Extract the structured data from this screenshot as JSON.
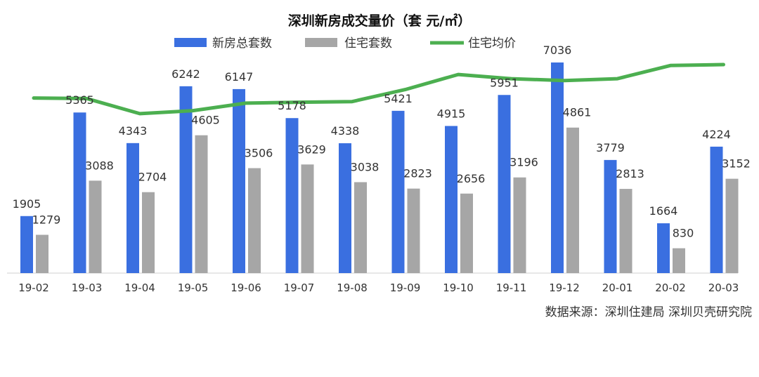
{
  "chart_data": {
    "type": "bar",
    "title": "深圳新房成交量价（套 元/㎡）",
    "categories": [
      "19-02",
      "19-03",
      "19-04",
      "19-05",
      "19-06",
      "19-07",
      "19-08",
      "19-09",
      "19-10",
      "19-11",
      "19-12",
      "20-01",
      "20-02",
      "20-03"
    ],
    "series": [
      {
        "name": "新房总套数",
        "type": "bar",
        "color": "#3a6fe0",
        "values": [
          1905,
          5365,
          4343,
          6242,
          6147,
          5178,
          4338,
          5421,
          4915,
          5951,
          7036,
          3779,
          1664,
          4224
        ],
        "labels": [
          "1905",
          "5365",
          "4343",
          "6242",
          "6147",
          "5178",
          "4338",
          "5421",
          "4915",
          "5951",
          "7036",
          "3779",
          "1664",
          "4224"
        ]
      },
      {
        "name": "住宅套数",
        "type": "bar",
        "color": "#a6a6a6",
        "values": [
          1279,
          3088,
          2704,
          4605,
          3506,
          3629,
          3038,
          2823,
          2656,
          3196,
          4861,
          2813,
          830,
          3152
        ],
        "labels": [
          "1279",
          "3088",
          "2704",
          "4605",
          "3506",
          "3629",
          "3038",
          "2823",
          "2656",
          "3196",
          "4861",
          "2813",
          "830",
          "3152"
        ]
      },
      {
        "name": "住宅均价",
        "type": "line",
        "color": "#4caf50",
        "values": [
          58200,
          58000,
          53000,
          54000,
          56500,
          56800,
          57000,
          61000,
          66000,
          64600,
          64000,
          64600,
          69000,
          69300
        ]
      }
    ],
    "legend_position": "top",
    "grid": false,
    "ylim_bars": [
      0,
      8000
    ],
    "ylim_line": [
      0,
      80000
    ]
  },
  "source_note": "数据来源：深圳住建局   深圳贝壳研究院"
}
